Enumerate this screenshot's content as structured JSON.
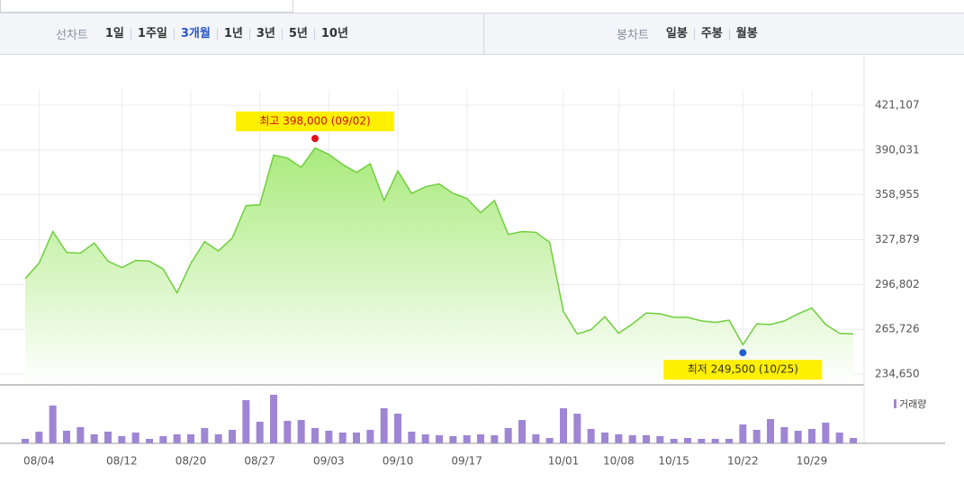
{
  "toolbar": {
    "line_label": "선차트",
    "periods": [
      "1일",
      "1주일",
      "3개월",
      "1년",
      "3년",
      "5년",
      "10년"
    ],
    "selected_period": 2,
    "candle_label": "봉차트",
    "candle_periods": [
      "일봉",
      "주봉",
      "월봉"
    ]
  },
  "chart_data": {
    "type": "line",
    "color": "#6fcf3c",
    "categories": [
      null,
      "08/04",
      null,
      null,
      null,
      null,
      null,
      "08/12",
      null,
      null,
      null,
      null,
      "08/20",
      null,
      null,
      null,
      null,
      "08/27",
      null,
      null,
      null,
      null,
      "09/03",
      null,
      null,
      null,
      null,
      "09/10",
      null,
      null,
      null,
      null,
      "09/17",
      null,
      null,
      null,
      null,
      null,
      null,
      "10/01",
      null,
      null,
      null,
      "10/08",
      null,
      null,
      null,
      "10/15",
      null,
      null,
      null,
      null,
      "10/22",
      null,
      null,
      null,
      null,
      "10/29",
      null,
      null,
      null
    ],
    "values": [
      301000,
      311500,
      333500,
      319000,
      318500,
      325500,
      313000,
      308500,
      313500,
      313000,
      307500,
      291000,
      311500,
      326500,
      320000,
      329000,
      351500,
      352000,
      386500,
      384500,
      378000,
      391500,
      387000,
      380000,
      374500,
      380500,
      355000,
      375500,
      360000,
      364500,
      366500,
      360000,
      356500,
      346500,
      355000,
      331500,
      333500,
      333000,
      326000,
      278000,
      262500,
      265500,
      274500,
      263000,
      269500,
      277000,
      276500,
      274000,
      274000,
      271500,
      270500,
      272000,
      255000,
      269500,
      269000,
      271500,
      276500,
      280500,
      269000,
      263000,
      262500
    ],
    "ylim": [
      227192,
      431673
    ],
    "yticks": [
      {
        "value": 421107,
        "label": "421,107"
      },
      {
        "value": 390031,
        "label": "390,031"
      },
      {
        "value": 358955,
        "label": "358,955"
      },
      {
        "value": 327879,
        "label": "327,879"
      },
      {
        "value": 296802,
        "label": "296,802"
      },
      {
        "value": 265726,
        "label": "265,726"
      },
      {
        "value": 234650,
        "label": "234,650"
      }
    ],
    "grid": true,
    "annotations": [
      {
        "label": "최고 398,000 (09/02)",
        "value": 398000,
        "kind": "high",
        "color": "#e0101a"
      },
      {
        "label": "최저 249,500 (10/25)",
        "value": 249500,
        "kind": "low",
        "color": "#1f5fd0"
      }
    ],
    "volume": {
      "name": "거래량",
      "color": "#9f86d4",
      "ylim": [
        0,
        60
      ],
      "values": [
        5,
        13,
        42,
        14,
        18,
        10,
        13,
        8,
        12,
        5,
        8,
        10,
        10,
        17,
        10,
        15,
        48,
        24,
        54,
        25,
        26,
        17,
        14,
        12,
        12,
        15,
        39,
        33,
        13,
        10,
        9,
        8,
        9,
        10,
        9,
        17,
        26,
        10,
        6,
        39,
        33,
        16,
        12,
        10,
        9,
        9,
        8,
        5,
        6,
        5,
        5,
        5,
        21,
        15,
        27,
        18,
        14,
        16,
        23,
        12,
        6
      ]
    }
  }
}
